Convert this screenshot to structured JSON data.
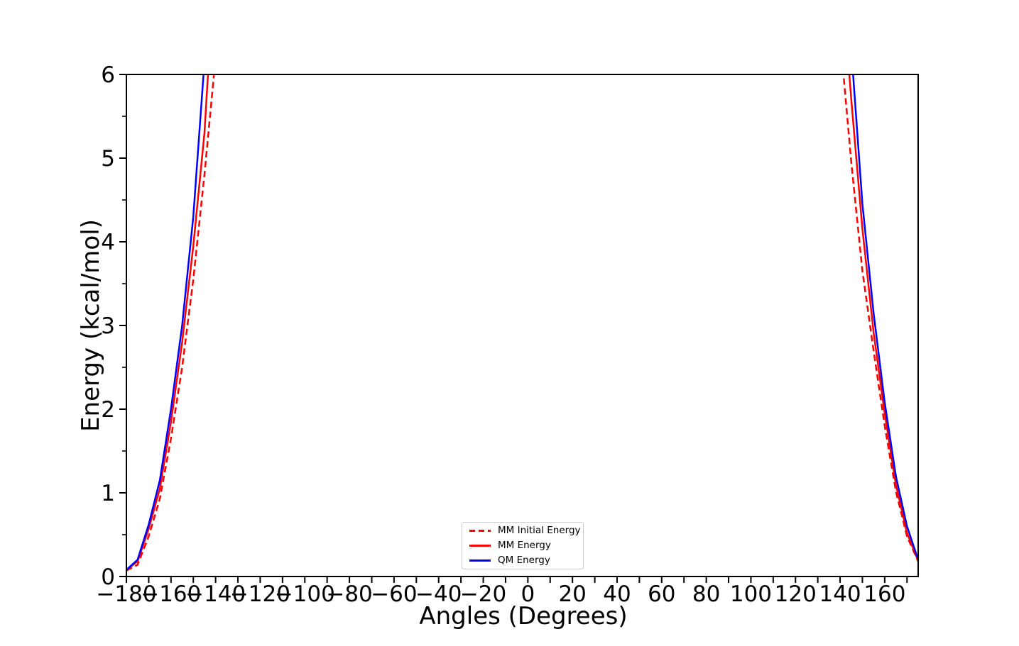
{
  "chart_data": {
    "type": "line",
    "title": "",
    "xlabel": "Angles (Degrees)",
    "ylabel": "Energy (kcal/mol)",
    "xlim": [
      -180,
      175
    ],
    "ylim": [
      0,
      6
    ],
    "grid": false,
    "background_color": "#ffffff",
    "spine_color": "#000000",
    "x_ticks": [
      {
        "value": -180,
        "label": "−180"
      },
      {
        "value": -170,
        "label": ""
      },
      {
        "value": -160,
        "label": "−160"
      },
      {
        "value": -150,
        "label": ""
      },
      {
        "value": -140,
        "label": "−140"
      },
      {
        "value": -130,
        "label": ""
      },
      {
        "value": -120,
        "label": "−120"
      },
      {
        "value": -110,
        "label": ""
      },
      {
        "value": -100,
        "label": "−100"
      },
      {
        "value": -90,
        "label": ""
      },
      {
        "value": -80,
        "label": "−80"
      },
      {
        "value": -70,
        "label": ""
      },
      {
        "value": -60,
        "label": "−60"
      },
      {
        "value": -50,
        "label": ""
      },
      {
        "value": -40,
        "label": "−40"
      },
      {
        "value": -30,
        "label": ""
      },
      {
        "value": -20,
        "label": "−20"
      },
      {
        "value": -10,
        "label": ""
      },
      {
        "value": 0,
        "label": "0"
      },
      {
        "value": 10,
        "label": ""
      },
      {
        "value": 20,
        "label": "20"
      },
      {
        "value": 30,
        "label": ""
      },
      {
        "value": 40,
        "label": "40"
      },
      {
        "value": 50,
        "label": ""
      },
      {
        "value": 60,
        "label": "60"
      },
      {
        "value": 70,
        "label": ""
      },
      {
        "value": 80,
        "label": "80"
      },
      {
        "value": 90,
        "label": ""
      },
      {
        "value": 100,
        "label": "100"
      },
      {
        "value": 110,
        "label": ""
      },
      {
        "value": 120,
        "label": "120"
      },
      {
        "value": 130,
        "label": ""
      },
      {
        "value": 140,
        "label": "140"
      },
      {
        "value": 150,
        "label": ""
      },
      {
        "value": 160,
        "label": "160"
      },
      {
        "value": 170,
        "label": ""
      }
    ],
    "y_major_ticks": [
      {
        "value": 0,
        "label": "0"
      },
      {
        "value": 1,
        "label": "1"
      },
      {
        "value": 2,
        "label": "2"
      },
      {
        "value": 3,
        "label": "3"
      },
      {
        "value": 4,
        "label": "4"
      },
      {
        "value": 5,
        "label": "5"
      },
      {
        "value": 6,
        "label": "6"
      }
    ],
    "y_minor_ticks": [
      0.5,
      1.5,
      2.5,
      3.5,
      4.5,
      5.5
    ],
    "legend_position": "lower center",
    "series": [
      {
        "name": "MM Initial Energy",
        "color": "#ff0000",
        "style": "dashed",
        "linewidth": 2.5,
        "branches": [
          [
            [
              -180,
              0.07
            ],
            [
              -175,
              0.14
            ],
            [
              -170,
              0.48
            ],
            [
              -165,
              0.93
            ],
            [
              -160,
              1.65
            ],
            [
              -155,
              2.5
            ],
            [
              -150,
              3.55
            ],
            [
              -145,
              4.8
            ],
            [
              -140,
              6.2
            ],
            [
              -135,
              8.1
            ]
          ],
          [
            [
              135,
              8.2
            ],
            [
              140,
              6.45
            ],
            [
              145,
              4.95
            ],
            [
              150,
              3.65
            ],
            [
              155,
              2.7
            ],
            [
              160,
              1.8
            ],
            [
              165,
              1.02
            ],
            [
              170,
              0.48
            ],
            [
              175,
              0.18
            ]
          ]
        ]
      },
      {
        "name": "MM Energy",
        "color": "#ff0000",
        "style": "solid",
        "linewidth": 2.5,
        "branches": [
          [
            [
              -180,
              0.08
            ],
            [
              -175,
              0.18
            ],
            [
              -170,
              0.57
            ],
            [
              -165,
              1.05
            ],
            [
              -160,
              1.85
            ],
            [
              -155,
              2.8
            ],
            [
              -150,
              3.95
            ],
            [
              -145,
              5.3
            ],
            [
              -140,
              7.5
            ]
          ],
          [
            [
              140,
              7.4
            ],
            [
              145,
              5.7
            ],
            [
              150,
              4.15
            ],
            [
              155,
              2.92
            ],
            [
              160,
              1.95
            ],
            [
              165,
              1.1
            ],
            [
              170,
              0.52
            ],
            [
              175,
              0.19
            ]
          ]
        ]
      },
      {
        "name": "QM Energy",
        "color": "#0000ff",
        "style": "solid",
        "linewidth": 2.5,
        "branches": [
          [
            [
              -180,
              0.08
            ],
            [
              -175,
              0.2
            ],
            [
              -170,
              0.62
            ],
            [
              -165,
              1.15
            ],
            [
              -160,
              2.0
            ],
            [
              -155,
              3.0
            ],
            [
              -150,
              4.3
            ],
            [
              -145,
              6.15
            ],
            [
              -140,
              8.4
            ]
          ],
          [
            [
              140,
              8.4
            ],
            [
              145,
              6.3
            ],
            [
              150,
              4.45
            ],
            [
              155,
              3.15
            ],
            [
              160,
              2.08
            ],
            [
              165,
              1.2
            ],
            [
              170,
              0.6
            ],
            [
              175,
              0.2
            ]
          ]
        ]
      }
    ]
  }
}
